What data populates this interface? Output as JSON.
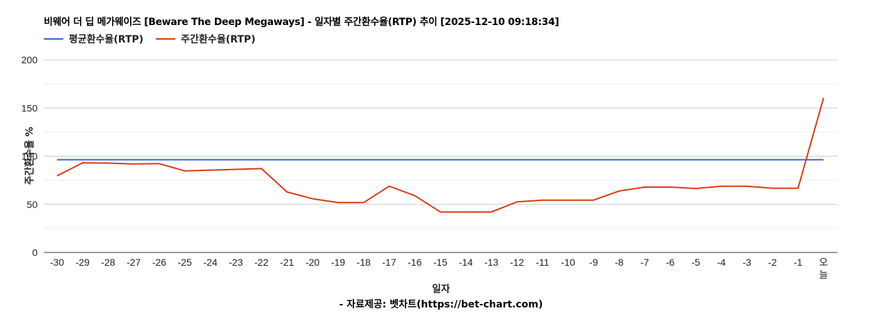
{
  "chart_data": {
    "type": "line",
    "title": "비웨어 더 딥 메가웨이즈 [Beware The Deep Megaways] - 일자별 주간환수율(RTP) 추이 [2025-12-10 09:18:34]",
    "xlabel": "일자",
    "ylabel": "주간환수율 %",
    "footer": "- 자료제공: 벳차트(https://bet-chart.com)",
    "ylim": [
      0,
      200
    ],
    "y_ticks": [
      0,
      50,
      100,
      150,
      200
    ],
    "grid": true,
    "legend_position": "top-left",
    "categories": [
      "-30",
      "-29",
      "-28",
      "-27",
      "-26",
      "-25",
      "-24",
      "-23",
      "-22",
      "-21",
      "-20",
      "-19",
      "-18",
      "-17",
      "-16",
      "-15",
      "-14",
      "-13",
      "-12",
      "-11",
      "-10",
      "-9",
      "-8",
      "-7",
      "-6",
      "-5",
      "-4",
      "-3",
      "-2",
      "-1",
      "오늘"
    ],
    "series": [
      {
        "name": "평균환수율(RTP)",
        "color": "#3366cc",
        "values": [
          96.3,
          96.3,
          96.3,
          96.3,
          96.3,
          96.3,
          96.3,
          96.3,
          96.3,
          96.3,
          96.3,
          96.3,
          96.3,
          96.3,
          96.3,
          96.3,
          96.3,
          96.3,
          96.3,
          96.3,
          96.3,
          96.3,
          96.3,
          96.3,
          96.3,
          96.3,
          96.3,
          96.3,
          96.3,
          96.3,
          96.3
        ]
      },
      {
        "name": "주간환수율(RTP)",
        "color": "#dc3912",
        "values": [
          79.6,
          93.1,
          92.8,
          91.9,
          92.2,
          84.7,
          85.5,
          86.3,
          87.1,
          62.8,
          55.8,
          51.8,
          51.8,
          68.8,
          59.0,
          42.1,
          42.1,
          42.1,
          52.5,
          54.4,
          54.4,
          54.4,
          63.8,
          67.9,
          67.9,
          66.4,
          68.8,
          68.8,
          66.7,
          66.7,
          160.5
        ]
      }
    ]
  },
  "header": {
    "title": "비웨어 더 딥 메가웨이즈 [Beware The Deep Megaways] - 일자별 주간환수율(RTP) 추이 [2025-12-10 09:18:34]"
  },
  "legend": {
    "items": [
      {
        "label": "평균환수율(RTP)",
        "color": "#3366cc"
      },
      {
        "label": "주간환수율(RTP)",
        "color": "#dc3912"
      }
    ]
  },
  "axes": {
    "xlabel": "일자",
    "ylabel": "주간환수율 %"
  },
  "footer": {
    "source": "- 자료제공: 벳차트(https://bet-chart.com)"
  }
}
